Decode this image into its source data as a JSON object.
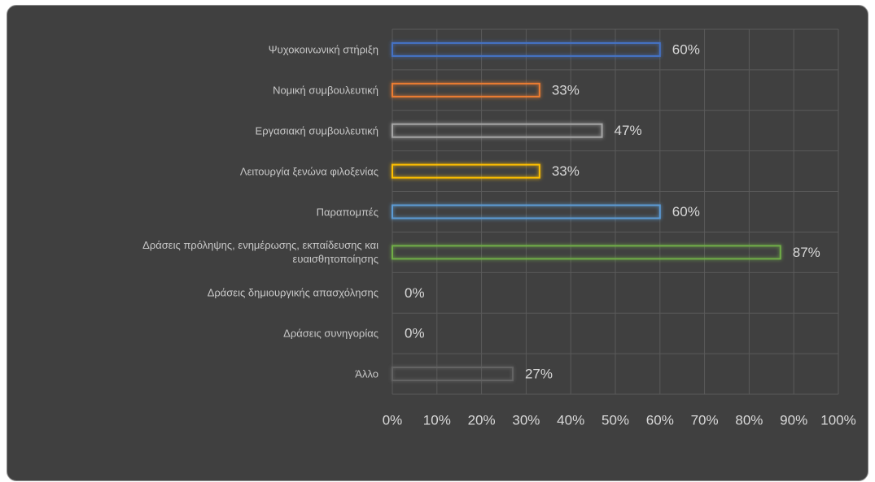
{
  "chart_data": {
    "type": "bar",
    "orientation": "horizontal",
    "categories": [
      "Ψυχοκοινωνική στήριξη",
      "Νομική συμβουλευτική",
      "Εργασιακή συμβουλευτική",
      "Λειτουργία ξενώνα φιλοξενίας",
      "Παραπομπές",
      "Δράσεις πρόληψης, ενημέρωσης, εκπαίδευσης και ευαισθητοποίησης",
      "Δράσεις δημιουργικής απασχόλησης",
      "Δράσεις συνηγορίας",
      "Άλλο"
    ],
    "values": [
      60,
      33,
      47,
      33,
      60,
      87,
      0,
      0,
      27
    ],
    "value_labels": [
      "60%",
      "33%",
      "47%",
      "33%",
      "60%",
      "87%",
      "0%",
      "0%",
      "27%"
    ],
    "colors": [
      "#4472c4",
      "#ed7d31",
      "#a5a5a5",
      "#ffc000",
      "#5b9bd5",
      "#70ad47",
      "#264478",
      "#9e480e",
      "#636363"
    ],
    "xlim": [
      0,
      100
    ],
    "xticks": [
      {
        "value": 0,
        "label": "0%"
      },
      {
        "value": 10,
        "label": "10%"
      },
      {
        "value": 20,
        "label": "20%"
      },
      {
        "value": 30,
        "label": "30%"
      },
      {
        "value": 40,
        "label": "40%"
      },
      {
        "value": 50,
        "label": "50%"
      },
      {
        "value": 60,
        "label": "60%"
      },
      {
        "value": 70,
        "label": "70%"
      },
      {
        "value": 80,
        "label": "80%"
      },
      {
        "value": 90,
        "label": "90%"
      },
      {
        "value": 100,
        "label": "100%"
      }
    ],
    "grid": true
  }
}
